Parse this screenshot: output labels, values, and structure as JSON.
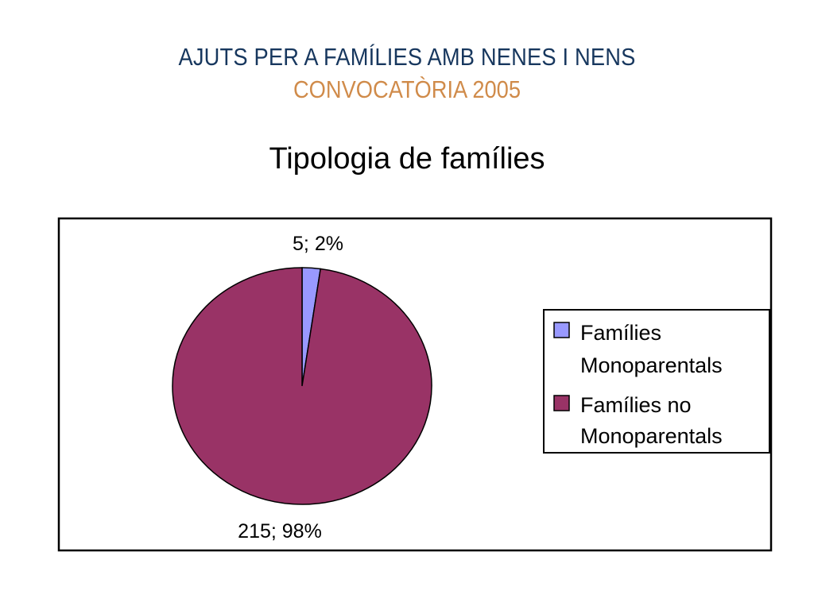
{
  "header": {
    "title": "AJUTS PER A FAMÍLIES AMB NENES I NENS",
    "subtitle": "CONVOCATÒRIA 2005"
  },
  "chart_data": {
    "type": "pie",
    "title": "Tipologia de famílies",
    "slices": [
      {
        "name": "Famílies Monoparentals",
        "value": 5,
        "percent": 2,
        "label": "5; 2%",
        "color": "#9999ff"
      },
      {
        "name": "Famílies no Monoparentals",
        "value": 215,
        "percent": 98,
        "label": "215; 98%",
        "color": "#993366"
      }
    ],
    "legend": {
      "placement": "right",
      "items": [
        {
          "line1": "Famílies",
          "line2": "Monoparentals",
          "color": "#9999ff"
        },
        {
          "line1": "Famílies no",
          "line2": "Monoparentals",
          "color": "#993366"
        }
      ]
    }
  }
}
